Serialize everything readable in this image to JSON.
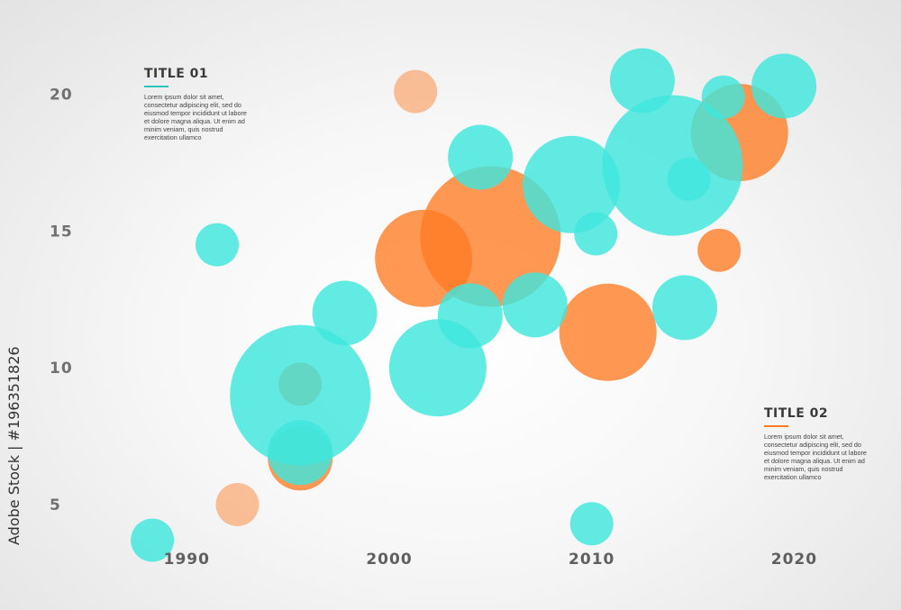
{
  "chart_data": {
    "type": "scatter",
    "bubble": true,
    "xlim": [
      1985,
      2023.5
    ],
    "ylim": [
      2.2,
      21.8
    ],
    "x_ticks": [
      "1990",
      "2000",
      "2010",
      "2020"
    ],
    "y_ticks": [
      "20",
      "15",
      "10",
      "5"
    ],
    "colors": {
      "teal": "#3fe6dd",
      "orange": "#ff7b22"
    },
    "series": [
      {
        "color": "teal",
        "points": [
          {
            "x": 1988.3,
            "y": 3.7,
            "r": 24
          },
          {
            "x": 1991.5,
            "y": 14.5,
            "r": 24
          },
          {
            "x": 1995.6,
            "y": 9.0,
            "r": 78
          },
          {
            "x": 1995.6,
            "y": 6.9,
            "r": 36
          },
          {
            "x": 1997.8,
            "y": 12.0,
            "r": 36
          },
          {
            "x": 2002.4,
            "y": 10.0,
            "r": 54
          },
          {
            "x": 2004.0,
            "y": 11.9,
            "r": 36
          },
          {
            "x": 2004.5,
            "y": 17.7,
            "r": 36
          },
          {
            "x": 2007.2,
            "y": 12.3,
            "r": 36
          },
          {
            "x": 2009.0,
            "y": 16.7,
            "r": 54
          },
          {
            "x": 2010.0,
            "y": 4.3,
            "r": 24
          },
          {
            "x": 2010.2,
            "y": 14.9,
            "r": 24
          },
          {
            "x": 2014.0,
            "y": 17.4,
            "r": 78
          },
          {
            "x": 2012.5,
            "y": 20.5,
            "r": 36
          },
          {
            "x": 2014.6,
            "y": 12.2,
            "r": 36
          },
          {
            "x": 2014.8,
            "y": 16.9,
            "r": 24
          },
          {
            "x": 2016.5,
            "y": 19.9,
            "r": 24
          },
          {
            "x": 2019.5,
            "y": 20.3,
            "r": 36
          }
        ]
      },
      {
        "color": "orange",
        "points": [
          {
            "x": 1992.5,
            "y": 5.0,
            "r": 24
          },
          {
            "x": 1995.6,
            "y": 9.4,
            "r": 24
          },
          {
            "x": 1995.6,
            "y": 6.7,
            "r": 36
          },
          {
            "x": 2001.7,
            "y": 14.0,
            "r": 54
          },
          {
            "x": 2005.0,
            "y": 14.8,
            "r": 78
          },
          {
            "x": 2010.8,
            "y": 11.3,
            "r": 54
          },
          {
            "x": 2016.3,
            "y": 14.3,
            "r": 24
          },
          {
            "x": 2017.3,
            "y": 18.6,
            "r": 54
          },
          {
            "x": 2001.3,
            "y": 20.1,
            "r": 24
          }
        ]
      }
    ]
  },
  "annotations": [
    {
      "title": "TITLE 01",
      "accent": "#2cc4bb",
      "text": "Lorem ipsum dolor sit amet, consectetur adipiscing elit, sed do eiusmod tempor incididunt ut labore et dolore magna aliqua. Ut enim ad minim veniam, quis nostrud exercitation ullamco"
    },
    {
      "title": "TITLE 02",
      "accent": "#ff7b22",
      "text": "Lorem ipsum dolor sit amet, consectetur adipiscing elit, sed do eiusmod tempor incididunt ut labore et dolore magna aliqua. Ut enim ad minim veniam, quis nostrud exercitation ullamco"
    }
  ],
  "credit": "Adobe Stock | #196351826"
}
